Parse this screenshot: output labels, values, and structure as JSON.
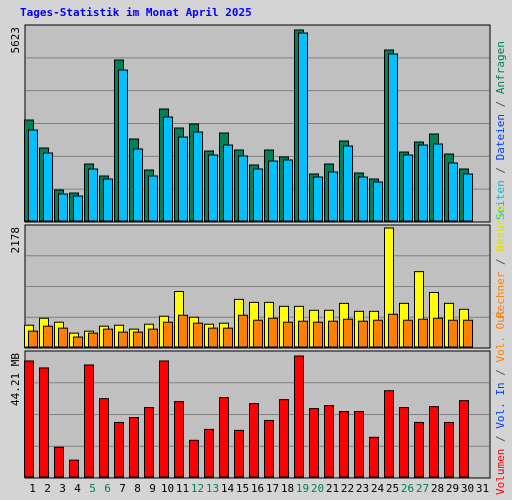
{
  "title": "Tages-Statistik im Monat April 2025",
  "label_separator": " / ",
  "chart_data": [
    {
      "type": "bar",
      "ylim": [
        0,
        5623
      ],
      "yticks": [
        5623
      ],
      "series": [
        {
          "name": "Anfragen",
          "color": "#00805c",
          "values": [
            2973,
            2149,
            913,
            824,
            1678,
            1325,
            4740,
            2414,
            1501,
            3297,
            2738,
            2856,
            2061,
            2591,
            2090,
            1649,
            2090,
            1884,
            5623,
            1384,
            1678,
            2355,
            1413,
            1236,
            5034,
            2031,
            2326,
            2561,
            1972,
            1531,
            null
          ]
        },
        {
          "name": "Dateien",
          "color": "#00c0ff",
          "values": [
            2679,
            2002,
            795,
            736,
            1531,
            1236,
            4445,
            2120,
            1325,
            3062,
            2473,
            2620,
            1943,
            2237,
            1914,
            1531,
            1766,
            1796,
            5535,
            1295,
            1443,
            2208,
            1295,
            1148,
            4917,
            1943,
            2237,
            2267,
            1708,
            1384,
            null
          ]
        }
      ],
      "legend": [
        {
          "text": "Seiten",
          "color": "#00c0e0"
        },
        {
          "text": "Dateien",
          "color": "#0040ff"
        },
        {
          "text": "Anfragen",
          "color": "#00805c"
        }
      ]
    },
    {
      "type": "bar",
      "ylim": [
        0,
        2178
      ],
      "yticks": [
        2178
      ],
      "series": [
        {
          "name": "Besuche",
          "color": "#ffff00",
          "values": [
            399,
            526,
            454,
            254,
            290,
            381,
            399,
            327,
            417,
            563,
            1016,
            545,
            417,
            436,
            871,
            817,
            817,
            744,
            744,
            672,
            672,
            799,
            653,
            653,
            2178,
            799,
            1379,
            998,
            799,
            690,
            null
          ]
        },
        {
          "name": "Rechner",
          "color": "#ff8000",
          "values": [
            290,
            381,
            345,
            182,
            254,
            327,
            272,
            272,
            327,
            454,
            581,
            436,
            345,
            345,
            581,
            490,
            526,
            454,
            472,
            454,
            472,
            508,
            472,
            490,
            599,
            490,
            508,
            526,
            490,
            490,
            null
          ]
        }
      ],
      "legend": [
        {
          "text": "Rechner",
          "color": "#ff8000"
        },
        {
          "text": "Besuche",
          "color": "#e0e000"
        }
      ]
    },
    {
      "type": "bar",
      "ylim": [
        0,
        44.21
      ],
      "yticks": [
        {
          "value": 44.21,
          "label": "44.21 MB"
        }
      ],
      "categories": [
        "1",
        "2",
        "3",
        "4",
        "5",
        "6",
        "7",
        "8",
        "9",
        "10",
        "11",
        "12",
        "13",
        "14",
        "15",
        "16",
        "17",
        "18",
        "19",
        "20",
        "21",
        "22",
        "23",
        "24",
        "25",
        "26",
        "27",
        "28",
        "29",
        "30",
        "31"
      ],
      "weekend_indices": [
        4,
        5,
        11,
        12,
        18,
        19,
        25,
        26
      ],
      "weekday_color": "#000000",
      "weekend_color": "#00805c",
      "series": [
        {
          "name": "Volumen",
          "color": "#ff0000",
          "values": [
            42.4,
            39.86,
            10.87,
            6.16,
            40.95,
            28.63,
            19.93,
            21.74,
            25.37,
            42.4,
            27.54,
            13.41,
            17.4,
            28.99,
            17.03,
            26.82,
            20.66,
            28.27,
            44.21,
            25.01,
            26.09,
            23.92,
            23.92,
            14.5,
            31.53,
            25.37,
            19.93,
            25.73,
            19.93,
            27.9,
            null
          ]
        }
      ],
      "legend": [
        {
          "text": "Volumen",
          "color": "#ff0000"
        },
        {
          "text": "Vol. In",
          "color": "#0040ff"
        },
        {
          "text": "Vol. Out",
          "color": "#ff8000"
        }
      ]
    }
  ]
}
